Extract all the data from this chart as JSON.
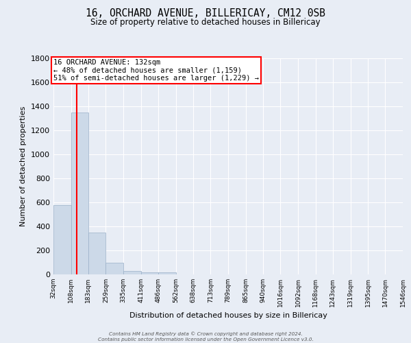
{
  "title": "16, ORCHARD AVENUE, BILLERICAY, CM12 0SB",
  "subtitle": "Size of property relative to detached houses in Billericay",
  "xlabel": "Distribution of detached houses by size in Billericay",
  "ylabel": "Number of detached properties",
  "bin_edges": [
    32,
    108,
    183,
    259,
    335,
    411,
    486,
    562,
    638,
    713,
    789,
    865,
    940,
    1016,
    1092,
    1168,
    1243,
    1319,
    1395,
    1470,
    1546
  ],
  "bin_labels": [
    "32sqm",
    "108sqm",
    "183sqm",
    "259sqm",
    "335sqm",
    "411sqm",
    "486sqm",
    "562sqm",
    "638sqm",
    "713sqm",
    "789sqm",
    "865sqm",
    "940sqm",
    "1016sqm",
    "1092sqm",
    "1168sqm",
    "1243sqm",
    "1319sqm",
    "1395sqm",
    "1470sqm",
    "1546sqm"
  ],
  "bar_heights": [
    580,
    1350,
    350,
    95,
    30,
    20,
    15,
    0,
    0,
    0,
    0,
    0,
    0,
    0,
    0,
    0,
    0,
    0,
    0,
    0
  ],
  "bar_color": "#ccd9e8",
  "bar_edgecolor": "#9ab0c8",
  "vline_x": 132,
  "vline_color": "red",
  "annotation_text": "16 ORCHARD AVENUE: 132sqm\n← 48% of detached houses are smaller (1,159)\n51% of semi-detached houses are larger (1,229) →",
  "annotation_box_color": "white",
  "annotation_box_edgecolor": "red",
  "ylim": [
    0,
    1800
  ],
  "yticks": [
    0,
    200,
    400,
    600,
    800,
    1000,
    1200,
    1400,
    1600,
    1800
  ],
  "bg_color": "#e8edf5",
  "plot_bg_color": "#e8edf5",
  "footer_line1": "Contains HM Land Registry data © Crown copyright and database right 2024.",
  "footer_line2": "Contains public sector information licensed under the Open Government Licence v3.0."
}
